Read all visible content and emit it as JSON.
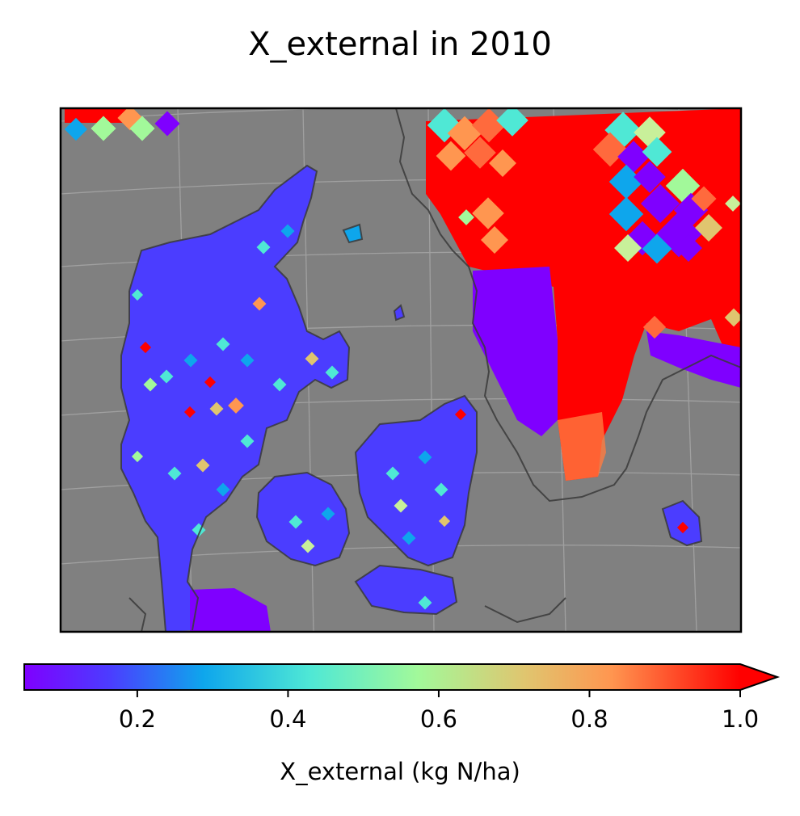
{
  "title": "X_external in 2010",
  "colorbar": {
    "label": "X_external (kg N/ha)",
    "min": 0.05,
    "max": 1.0,
    "extend": "max",
    "ticks": [
      0.2,
      0.4,
      0.6,
      0.8,
      1.0
    ],
    "tick_labels": [
      "0.2",
      "0.4",
      "0.6",
      "0.8",
      "1.0"
    ],
    "colormap": "rainbow"
  },
  "map": {
    "background_color": "#808080",
    "coastline_color": "#3a3a3a",
    "gridlines": true,
    "region": "Denmark and southern Sweden"
  }
}
